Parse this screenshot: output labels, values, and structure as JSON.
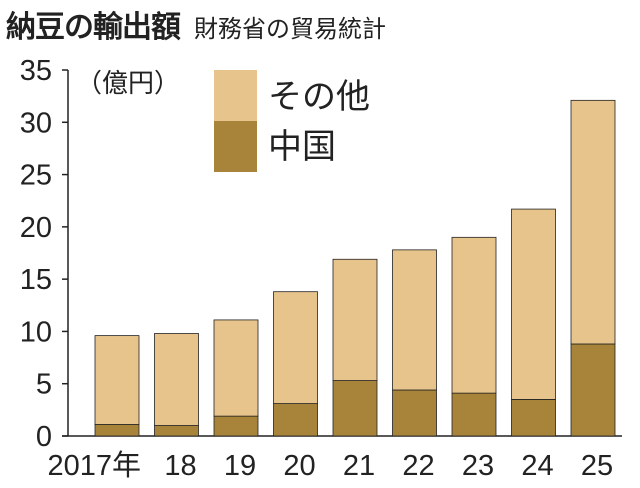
{
  "chart_data": {
    "type": "bar",
    "stacked": true,
    "title": "納豆の輸出額",
    "subtitle": "財務省の貿易統計",
    "ylabel": "（億円）",
    "ylim": [
      0,
      35
    ],
    "yticks": [
      0,
      5,
      10,
      15,
      20,
      25,
      30,
      35
    ],
    "categories": [
      "2017年",
      "18",
      "19",
      "20",
      "21",
      "22",
      "23",
      "24",
      "25"
    ],
    "series": [
      {
        "name": "中国",
        "color": "#a8843a",
        "values": [
          1.1,
          1.0,
          1.9,
          3.1,
          5.3,
          4.4,
          4.1,
          3.5,
          8.8
        ]
      },
      {
        "name": "その他",
        "color": "#e7c48c",
        "values": [
          8.5,
          8.8,
          9.2,
          10.7,
          11.6,
          13.4,
          14.9,
          18.2,
          23.3
        ]
      }
    ],
    "legend_position": "top-left"
  }
}
